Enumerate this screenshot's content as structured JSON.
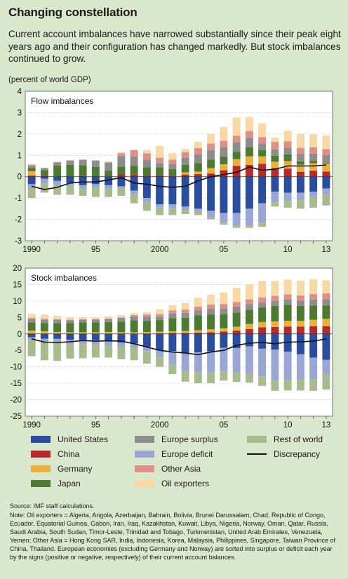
{
  "title": "Changing constellation",
  "subtitle": "Current account imbalances have narrowed substantially since their peak eight years ago and their configuration has changed markedly. But stock imbalances continued to grow.",
  "unit": "(percent of world GDP)",
  "colors": {
    "United States": "#2b4d9e",
    "China": "#b52a2a",
    "Germany": "#e9b13c",
    "Japan": "#4c7a30",
    "Europe surplus": "#8d8d8d",
    "Europe deficit": "#9aa6d3",
    "Other Asia": "#de8f86",
    "Oil exporters": "#f8d9a3",
    "Rest of world": "#a7bb8c",
    "Discrepancy": "#111111"
  },
  "legend": [
    {
      "label": "United States",
      "key": "United States"
    },
    {
      "label": "China",
      "key": "China"
    },
    {
      "label": "Germany",
      "key": "Germany"
    },
    {
      "label": "Japan",
      "key": "Japan"
    },
    {
      "label": "Europe surplus",
      "key": "Europe surplus"
    },
    {
      "label": "Europe deficit",
      "key": "Europe deficit"
    },
    {
      "label": "Other Asia",
      "key": "Other Asia"
    },
    {
      "label": "Oil exporters",
      "key": "Oil exporters"
    },
    {
      "label": "Rest of world",
      "key": "Rest of world"
    },
    {
      "label": "Discrepancy",
      "key": "Discrepancy"
    }
  ],
  "source": "Source: IMF staff calculations.",
  "note": "Note: Oil exporters = Algeria, Angola, Azerbaijan, Bahrain, Bolivia, Brunei Darussalam, Chad, Republic of Congo, Ecuador, Equatorial Guinea, Gabon, Iran, Iraq, Kazakhstan, Kuwait, Libya, Nigeria, Norway, Oman, Qatar, Russia, Saudi Arabia, South Sudan, Timor-Leste, Trinidad and Tobago, Turkmenistan, United Arab Emirates, Venezuela, Yemen; Other Asia = Hong Kong SAR, India, Indonesia, Korea, Malaysia, Philippines, Singapore, Taiwan Province of China, Thailand. European economies (excluding Germany and Norway) are sorted into surplus or deficit each year by the signs (positive or negative, respectively) of their current account balances.",
  "chart_data": [
    {
      "type": "bar",
      "stacked": true,
      "title": "Flow imbalances",
      "ylabel": "(percent of world GDP)",
      "ylim": [
        -3,
        4
      ],
      "yticks": [
        -3,
        -2,
        -1,
        0,
        1,
        2,
        3,
        4
      ],
      "x": [
        1990,
        1991,
        1992,
        1993,
        1994,
        1995,
        1996,
        1997,
        1998,
        1999,
        2000,
        2001,
        2002,
        2003,
        2004,
        2005,
        2006,
        2007,
        2008,
        2009,
        2010,
        2011,
        2012,
        2013
      ],
      "xtick_labels": [
        {
          "x": 1990,
          "label": "1990"
        },
        {
          "x": 1995,
          "label": "95"
        },
        {
          "x": 2000,
          "label": "2000"
        },
        {
          "x": 2005,
          "label": "05"
        },
        {
          "x": 2010,
          "label": "10"
        },
        {
          "x": 2013,
          "label": "13"
        }
      ],
      "positive_series": [
        {
          "name": "China",
          "values": [
            0.05,
            0.05,
            0.02,
            0.0,
            0.03,
            0.01,
            0.02,
            0.12,
            0.1,
            0.06,
            0.06,
            0.05,
            0.1,
            0.12,
            0.15,
            0.3,
            0.5,
            0.55,
            0.6,
            0.4,
            0.38,
            0.23,
            0.28,
            0.24
          ]
        },
        {
          "name": "Germany",
          "values": [
            0.2,
            0.0,
            0.0,
            0.0,
            0.0,
            0.0,
            0.0,
            0.0,
            0.0,
            0.0,
            0.0,
            0.0,
            0.1,
            0.12,
            0.25,
            0.28,
            0.32,
            0.4,
            0.35,
            0.3,
            0.35,
            0.33,
            0.35,
            0.37
          ]
        },
        {
          "name": "Japan",
          "values": [
            0.15,
            0.25,
            0.5,
            0.55,
            0.5,
            0.45,
            0.25,
            0.35,
            0.4,
            0.38,
            0.38,
            0.3,
            0.35,
            0.4,
            0.4,
            0.35,
            0.35,
            0.42,
            0.3,
            0.28,
            0.32,
            0.16,
            0.1,
            0.05
          ]
        },
        {
          "name": "Europe surplus",
          "values": [
            0.1,
            0.1,
            0.15,
            0.2,
            0.25,
            0.3,
            0.4,
            0.5,
            0.45,
            0.35,
            0.2,
            0.25,
            0.35,
            0.4,
            0.45,
            0.45,
            0.45,
            0.45,
            0.3,
            0.3,
            0.3,
            0.35,
            0.35,
            0.35
          ]
        },
        {
          "name": "Other Asia",
          "values": [
            0.05,
            0.0,
            0.02,
            0.02,
            0.02,
            0.0,
            0.0,
            0.13,
            0.3,
            0.3,
            0.25,
            0.2,
            0.25,
            0.3,
            0.3,
            0.3,
            0.3,
            0.32,
            0.3,
            0.35,
            0.3,
            0.28,
            0.3,
            0.28
          ]
        },
        {
          "name": "Oil exporters",
          "values": [
            0.05,
            0.0,
            0.0,
            0.0,
            0.0,
            0.0,
            0.05,
            0.05,
            0.0,
            0.15,
            0.55,
            0.3,
            0.15,
            0.3,
            0.45,
            0.65,
            0.85,
            0.65,
            0.65,
            0.2,
            0.5,
            0.65,
            0.6,
            0.65
          ]
        }
      ],
      "negative_series": [
        {
          "name": "United States",
          "values": [
            -0.35,
            -0.1,
            -0.2,
            -0.3,
            -0.4,
            -0.35,
            -0.4,
            -0.45,
            -0.65,
            -1.0,
            -1.3,
            -1.3,
            -1.4,
            -1.5,
            -1.6,
            -1.7,
            -1.7,
            -1.5,
            -1.25,
            -0.7,
            -0.75,
            -0.75,
            -0.7,
            -0.55
          ]
        },
        {
          "name": "Europe deficit",
          "values": [
            -0.2,
            -0.2,
            -0.2,
            -0.15,
            -0.15,
            -0.15,
            -0.15,
            -0.1,
            -0.15,
            -0.2,
            -0.15,
            -0.2,
            -0.15,
            -0.15,
            -0.3,
            -0.45,
            -0.6,
            -0.8,
            -0.9,
            -0.5,
            -0.4,
            -0.35,
            -0.25,
            -0.25
          ]
        },
        {
          "name": "Rest of world",
          "values": [
            -0.45,
            -0.45,
            -0.45,
            -0.4,
            -0.35,
            -0.45,
            -0.4,
            -0.35,
            -0.45,
            -0.4,
            -0.35,
            -0.3,
            -0.2,
            -0.15,
            -0.1,
            -0.1,
            -0.1,
            -0.1,
            -0.2,
            -0.2,
            -0.3,
            -0.4,
            -0.5,
            -0.55
          ]
        }
      ],
      "discrepancy": {
        "name": "Discrepancy",
        "values": [
          -0.45,
          -0.6,
          -0.5,
          -0.3,
          -0.25,
          -0.25,
          -0.15,
          -0.05,
          -0.3,
          -0.35,
          -0.45,
          -0.5,
          -0.45,
          -0.2,
          0.0,
          0.1,
          0.2,
          0.45,
          0.3,
          0.35,
          0.5,
          0.5,
          0.5,
          0.55
        ]
      }
    },
    {
      "type": "bar",
      "stacked": true,
      "title": "Stock imbalances",
      "ylabel": "(percent of world GDP)",
      "ylim": [
        -25,
        20
      ],
      "yticks": [
        -25,
        -20,
        -15,
        -10,
        -5,
        0,
        5,
        10,
        15,
        20
      ],
      "x": [
        1990,
        1991,
        1992,
        1993,
        1994,
        1995,
        1996,
        1997,
        1998,
        1999,
        2000,
        2001,
        2002,
        2003,
        2004,
        2005,
        2006,
        2007,
        2008,
        2009,
        2010,
        2011,
        2012,
        2013
      ],
      "xtick_labels": [
        {
          "x": 1990,
          "label": "1990"
        },
        {
          "x": 1995,
          "label": "95"
        },
        {
          "x": 2000,
          "label": "2000"
        },
        {
          "x": 2005,
          "label": "05"
        },
        {
          "x": 2010,
          "label": "10"
        },
        {
          "x": 2013,
          "label": "13"
        }
      ],
      "positive_series": [
        {
          "name": "China",
          "values": [
            0.0,
            0.0,
            0.0,
            0.0,
            0.0,
            0.0,
            0.0,
            0.0,
            0.1,
            0.1,
            0.2,
            0.3,
            0.3,
            0.4,
            0.5,
            0.7,
            1.0,
            1.5,
            2.0,
            2.1,
            2.2,
            2.2,
            2.3,
            2.3
          ]
        },
        {
          "name": "Germany",
          "values": [
            1.0,
            0.8,
            0.6,
            0.5,
            0.5,
            0.5,
            0.6,
            0.5,
            0.4,
            0.5,
            0.5,
            0.5,
            0.6,
            0.7,
            0.9,
            1.0,
            1.2,
            1.5,
            1.6,
            1.7,
            1.8,
            1.8,
            2.0,
            2.3
          ]
        },
        {
          "name": "Japan",
          "values": [
            2.5,
            2.5,
            2.7,
            2.8,
            3.0,
            3.0,
            3.0,
            3.2,
            3.6,
            3.3,
            3.5,
            4.0,
            4.0,
            4.5,
            4.5,
            4.3,
            4.3,
            4.3,
            4.5,
            4.7,
            4.8,
            4.5,
            4.3,
            4.0
          ]
        },
        {
          "name": "Europe surplus",
          "values": [
            1.0,
            1.0,
            1.0,
            0.8,
            0.8,
            0.9,
            1.0,
            1.2,
            1.2,
            1.3,
            1.0,
            1.4,
            1.5,
            1.6,
            1.8,
            1.8,
            1.8,
            1.7,
            1.5,
            1.5,
            1.6,
            1.6,
            1.8,
            1.9
          ]
        },
        {
          "name": "Other Asia",
          "values": [
            0.4,
            0.3,
            0.2,
            0.2,
            0.2,
            0.1,
            0.1,
            0.1,
            0.4,
            0.7,
            0.8,
            0.9,
            1.0,
            1.1,
            1.2,
            1.3,
            1.4,
            1.5,
            1.5,
            1.6,
            1.6,
            1.6,
            1.7,
            1.8
          ]
        },
        {
          "name": "Oil exporters",
          "values": [
            1.2,
            1.3,
            1.0,
            0.7,
            0.5,
            0.5,
            0.6,
            0.7,
            0.6,
            0.7,
            1.5,
            1.6,
            2.0,
            2.7,
            3.0,
            3.5,
            4.3,
            4.5,
            5.0,
            4.5,
            4.5,
            4.5,
            4.5,
            4.0
          ]
        }
      ],
      "negative_series": [
        {
          "name": "United States",
          "values": [
            -1.0,
            -1.5,
            -1.5,
            -1.8,
            -1.8,
            -1.9,
            -2.2,
            -2.6,
            -3.0,
            -3.9,
            -5.0,
            -5.2,
            -5.8,
            -5.6,
            -5.3,
            -4.2,
            -4.3,
            -3.8,
            -4.5,
            -4.8,
            -5.4,
            -6.2,
            -7.2,
            -7.9
          ]
        },
        {
          "name": "Europe deficit",
          "values": [
            -0.8,
            -1.0,
            -1.1,
            -1.2,
            -1.3,
            -1.4,
            -1.5,
            -1.4,
            -1.2,
            -1.3,
            -2.0,
            -4.0,
            -5.5,
            -6.0,
            -6.4,
            -7.0,
            -7.5,
            -8.5,
            -8.5,
            -9.3,
            -8.5,
            -7.5,
            -6.5,
            -4.2
          ]
        },
        {
          "name": "Rest of world",
          "values": [
            -5.0,
            -5.5,
            -5.6,
            -4.5,
            -4.3,
            -3.9,
            -3.5,
            -3.7,
            -3.8,
            -3.8,
            -3.0,
            -3.0,
            -3.2,
            -3.4,
            -3.3,
            -3.0,
            -2.8,
            -2.5,
            -2.8,
            -3.2,
            -3.3,
            -3.5,
            -3.6,
            -4.8
          ]
        }
      ],
      "discrepancy": {
        "name": "Discrepancy",
        "values": [
          -1.5,
          -2.5,
          -2.6,
          -2.4,
          -2.0,
          -2.2,
          -2.1,
          -2.2,
          -3.0,
          -4.0,
          -5.0,
          -5.5,
          -5.8,
          -6.3,
          -5.5,
          -5.0,
          -3.5,
          -2.8,
          -2.6,
          -3.0,
          -2.5,
          -2.4,
          -2.2,
          -1.5
        ]
      }
    }
  ]
}
